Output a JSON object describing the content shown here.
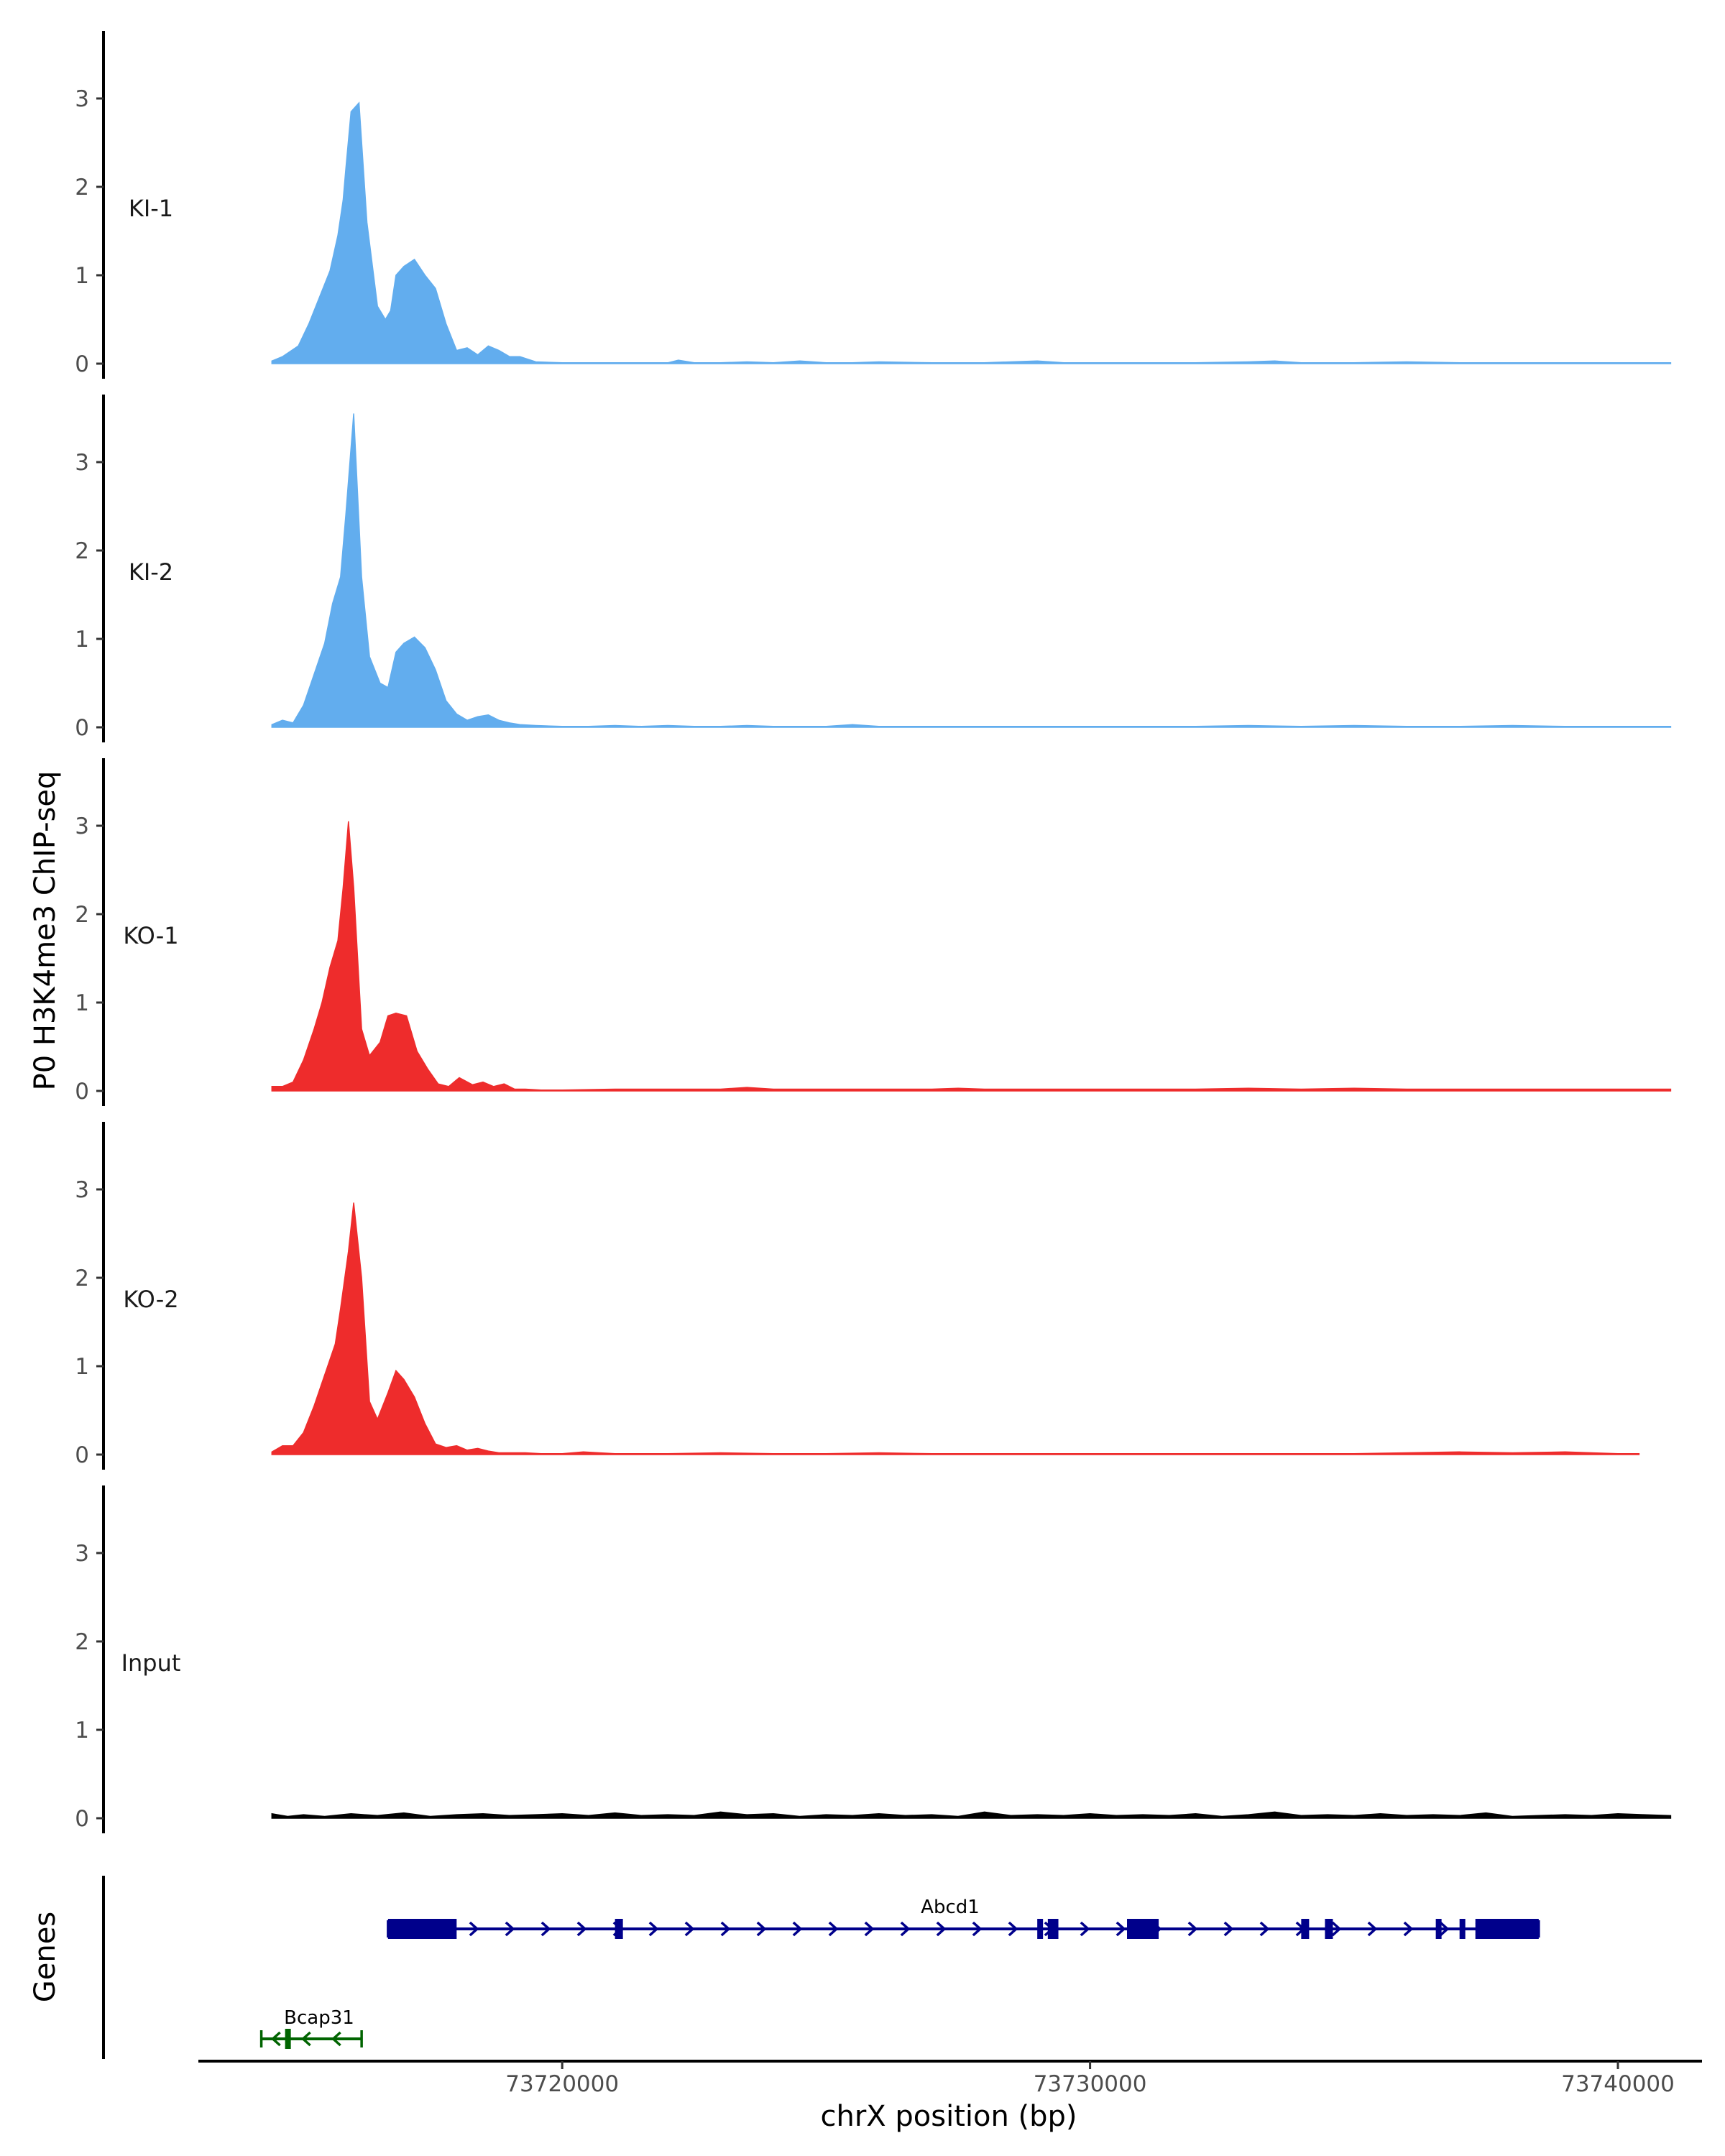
{
  "chart_data": {
    "type": "area",
    "ylabel": "P0 H3K4me3 ChIP-seq",
    "xlabel": "chrX position (bp)",
    "yticks": [
      "0",
      "1",
      "2",
      "3"
    ],
    "ytick_values": [
      0,
      1,
      2,
      3
    ],
    "ylim": [
      0,
      3.75
    ],
    "xlim": [
      73713200,
      73742200
    ],
    "xticks": [
      73720000,
      73730000,
      73740000
    ],
    "xtick_labels": [
      "73720000",
      "73730000",
      "73740000"
    ],
    "colors": {
      "KI": "#62adee",
      "KO": "#ee2c2c",
      "Input": "#000000",
      "gene_plus": "#00008b",
      "gene_minus": "#006400"
    },
    "tracks": [
      {
        "name": "KI-1",
        "color": "#62adee",
        "x": [
          73714500,
          73714700,
          73715000,
          73715200,
          73715400,
          73715600,
          73715750,
          73715850,
          73715900,
          73716000,
          73716150,
          73716300,
          73716500,
          73716650,
          73716750,
          73716850,
          73717000,
          73717200,
          73717400,
          73717600,
          73717800,
          73718000,
          73718200,
          73718400,
          73718600,
          73718800,
          73719000,
          73719200,
          73719500,
          73720000,
          73720500,
          73721000,
          73721500,
          73722000,
          73722200,
          73722500,
          73723000,
          73723500,
          73724000,
          73724500,
          73725000,
          73725500,
          73726000,
          73727000,
          73728000,
          73728500,
          73729000,
          73729500,
          73730000,
          73731000,
          73732000,
          73733000,
          73733500,
          73734000,
          73735000,
          73736000,
          73737000,
          73738000,
          73739000,
          73740000,
          73741000
        ],
        "y": [
          0.03,
          0.08,
          0.2,
          0.45,
          0.75,
          1.05,
          1.45,
          1.85,
          2.2,
          2.85,
          2.95,
          1.6,
          0.65,
          0.5,
          0.6,
          1.0,
          1.1,
          1.18,
          1.0,
          0.85,
          0.45,
          0.15,
          0.18,
          0.1,
          0.2,
          0.15,
          0.08,
          0.08,
          0.02,
          0.01,
          0.01,
          0.01,
          0.01,
          0.01,
          0.04,
          0.01,
          0.01,
          0.02,
          0.01,
          0.03,
          0.01,
          0.01,
          0.02,
          0.01,
          0.01,
          0.02,
          0.03,
          0.01,
          0.01,
          0.01,
          0.01,
          0.02,
          0.03,
          0.01,
          0.01,
          0.02,
          0.01,
          0.01,
          0.01,
          0.01,
          0.01
        ]
      },
      {
        "name": "KI-2",
        "color": "#62adee",
        "x": [
          73714500,
          73714700,
          73714900,
          73715100,
          73715300,
          73715500,
          73715650,
          73715800,
          73715900,
          73716050,
          73716200,
          73716350,
          73716550,
          73716700,
          73716850,
          73717000,
          73717200,
          73717400,
          73717600,
          73717800,
          73718000,
          73718200,
          73718400,
          73718600,
          73718800,
          73719000,
          73719200,
          73719500,
          73720000,
          73720500,
          73721000,
          73721500,
          73722000,
          73722500,
          73723000,
          73723500,
          73724000,
          73725000,
          73725500,
          73726000,
          73727000,
          73728000,
          73729000,
          73730000,
          73731000,
          73732000,
          73733000,
          73734000,
          73735000,
          73736000,
          73737000,
          73738000,
          73739000,
          73740000,
          73741000
        ],
        "y": [
          0.03,
          0.08,
          0.05,
          0.25,
          0.6,
          0.95,
          1.4,
          1.7,
          2.4,
          3.55,
          1.7,
          0.8,
          0.5,
          0.45,
          0.85,
          0.95,
          1.02,
          0.9,
          0.65,
          0.3,
          0.15,
          0.08,
          0.12,
          0.14,
          0.08,
          0.05,
          0.03,
          0.02,
          0.01,
          0.01,
          0.02,
          0.01,
          0.02,
          0.01,
          0.01,
          0.02,
          0.01,
          0.01,
          0.03,
          0.01,
          0.01,
          0.01,
          0.01,
          0.01,
          0.01,
          0.01,
          0.02,
          0.01,
          0.02,
          0.01,
          0.01,
          0.02,
          0.01,
          0.01,
          0.01
        ]
      },
      {
        "name": "KO-1",
        "color": "#ee2c2c",
        "x": [
          73714500,
          73714700,
          73714900,
          73715100,
          73715300,
          73715450,
          73715600,
          73715750,
          73715850,
          73715950,
          73716050,
          73716200,
          73716350,
          73716550,
          73716700,
          73716850,
          73717050,
          73717250,
          73717450,
          73717650,
          73717850,
          73718050,
          73718300,
          73718500,
          73718700,
          73718900,
          73719100,
          73719300,
          73719600,
          73720000,
          73721000,
          73722000,
          73723000,
          73723500,
          73724000,
          73725000,
          73726000,
          73727000,
          73727500,
          73728000,
          73729000,
          73730000,
          73731000,
          73732000,
          73733000,
          73734000,
          73735000,
          73736000,
          73737000,
          73738000,
          73739000,
          73740000,
          73741000
        ],
        "y": [
          0.05,
          0.05,
          0.1,
          0.35,
          0.7,
          1.0,
          1.4,
          1.7,
          2.3,
          3.05,
          2.3,
          0.7,
          0.4,
          0.55,
          0.85,
          0.88,
          0.85,
          0.45,
          0.25,
          0.08,
          0.05,
          0.15,
          0.07,
          0.1,
          0.05,
          0.08,
          0.02,
          0.02,
          0.01,
          0.01,
          0.02,
          0.02,
          0.02,
          0.04,
          0.02,
          0.02,
          0.02,
          0.02,
          0.03,
          0.02,
          0.02,
          0.02,
          0.02,
          0.02,
          0.03,
          0.02,
          0.03,
          0.02,
          0.02,
          0.02,
          0.02,
          0.02,
          0.02
        ]
      },
      {
        "name": "KO-2",
        "color": "#ee2c2c",
        "x": [
          73714500,
          73714700,
          73714900,
          73715100,
          73715300,
          73715500,
          73715700,
          73715800,
          73715950,
          73716050,
          73716200,
          73716350,
          73716500,
          73716700,
          73716850,
          73717000,
          73717200,
          73717400,
          73717600,
          73717800,
          73718000,
          73718200,
          73718400,
          73718600,
          73718800,
          73719000,
          73719300,
          73719600,
          73720000,
          73720400,
          73721000,
          73722000,
          73723000,
          73724000,
          73725000,
          73726000,
          73727000,
          73728000,
          73729000,
          73730000,
          73731000,
          73732000,
          73733000,
          73734000,
          73735000,
          73736000,
          73737000,
          73738000,
          73739000,
          73740000,
          73740400
        ],
        "y": [
          0.03,
          0.1,
          0.1,
          0.25,
          0.55,
          0.9,
          1.25,
          1.65,
          2.3,
          2.85,
          2.0,
          0.6,
          0.4,
          0.7,
          0.95,
          0.85,
          0.65,
          0.35,
          0.12,
          0.08,
          0.1,
          0.05,
          0.07,
          0.04,
          0.02,
          0.02,
          0.02,
          0.01,
          0.01,
          0.03,
          0.01,
          0.01,
          0.02,
          0.01,
          0.01,
          0.02,
          0.01,
          0.01,
          0.01,
          0.01,
          0.01,
          0.01,
          0.01,
          0.01,
          0.01,
          0.02,
          0.03,
          0.02,
          0.03,
          0.01,
          0.01
        ]
      },
      {
        "name": "Input",
        "color": "#000000",
        "x": [
          73714500,
          73714800,
          73715100,
          73715500,
          73716000,
          73716500,
          73717000,
          73717500,
          73718000,
          73718500,
          73719000,
          73719500,
          73720000,
          73720500,
          73721000,
          73721500,
          73722000,
          73722500,
          73723000,
          73723500,
          73724000,
          73724500,
          73725000,
          73725500,
          73726000,
          73726500,
          73727000,
          73727500,
          73728000,
          73728500,
          73729000,
          73729500,
          73730000,
          73730500,
          73731000,
          73731500,
          73732000,
          73732500,
          73733000,
          73733500,
          73734000,
          73734500,
          73735000,
          73735500,
          73736000,
          73736500,
          73737000,
          73737500,
          73738000,
          73738500,
          73739000,
          73739500,
          73740000,
          73740500,
          73741000
        ],
        "y": [
          0.05,
          0.02,
          0.04,
          0.02,
          0.05,
          0.03,
          0.06,
          0.02,
          0.04,
          0.05,
          0.03,
          0.04,
          0.05,
          0.03,
          0.06,
          0.03,
          0.04,
          0.03,
          0.07,
          0.04,
          0.05,
          0.02,
          0.04,
          0.03,
          0.05,
          0.03,
          0.04,
          0.02,
          0.07,
          0.03,
          0.04,
          0.03,
          0.05,
          0.03,
          0.04,
          0.03,
          0.05,
          0.02,
          0.04,
          0.07,
          0.03,
          0.04,
          0.03,
          0.05,
          0.03,
          0.04,
          0.03,
          0.06,
          0.02,
          0.03,
          0.04,
          0.03,
          0.05,
          0.04,
          0.03
        ]
      }
    ],
    "genes": [
      {
        "name": "Abcd1",
        "strand": "+",
        "start": 73716700,
        "end": 73738500,
        "color": "#00008b",
        "row": 1,
        "exons": [
          [
            73716700,
            73718000
          ],
          [
            73721000,
            73721150
          ],
          [
            73729000,
            73729100
          ],
          [
            73729200,
            73729400
          ],
          [
            73730700,
            73731300
          ],
          [
            73734000,
            73734150
          ],
          [
            73734450,
            73734600
          ],
          [
            73736550,
            73736650
          ],
          [
            73737000,
            73737100
          ],
          [
            73737300,
            73738500
          ]
        ]
      },
      {
        "name": "Bcap31",
        "strand": "-",
        "start": 73714300,
        "end": 73716200,
        "color": "#006400",
        "row": 2,
        "exons": [
          [
            73714750,
            73714850
          ]
        ]
      }
    ],
    "gene_panel_label": "Genes"
  }
}
